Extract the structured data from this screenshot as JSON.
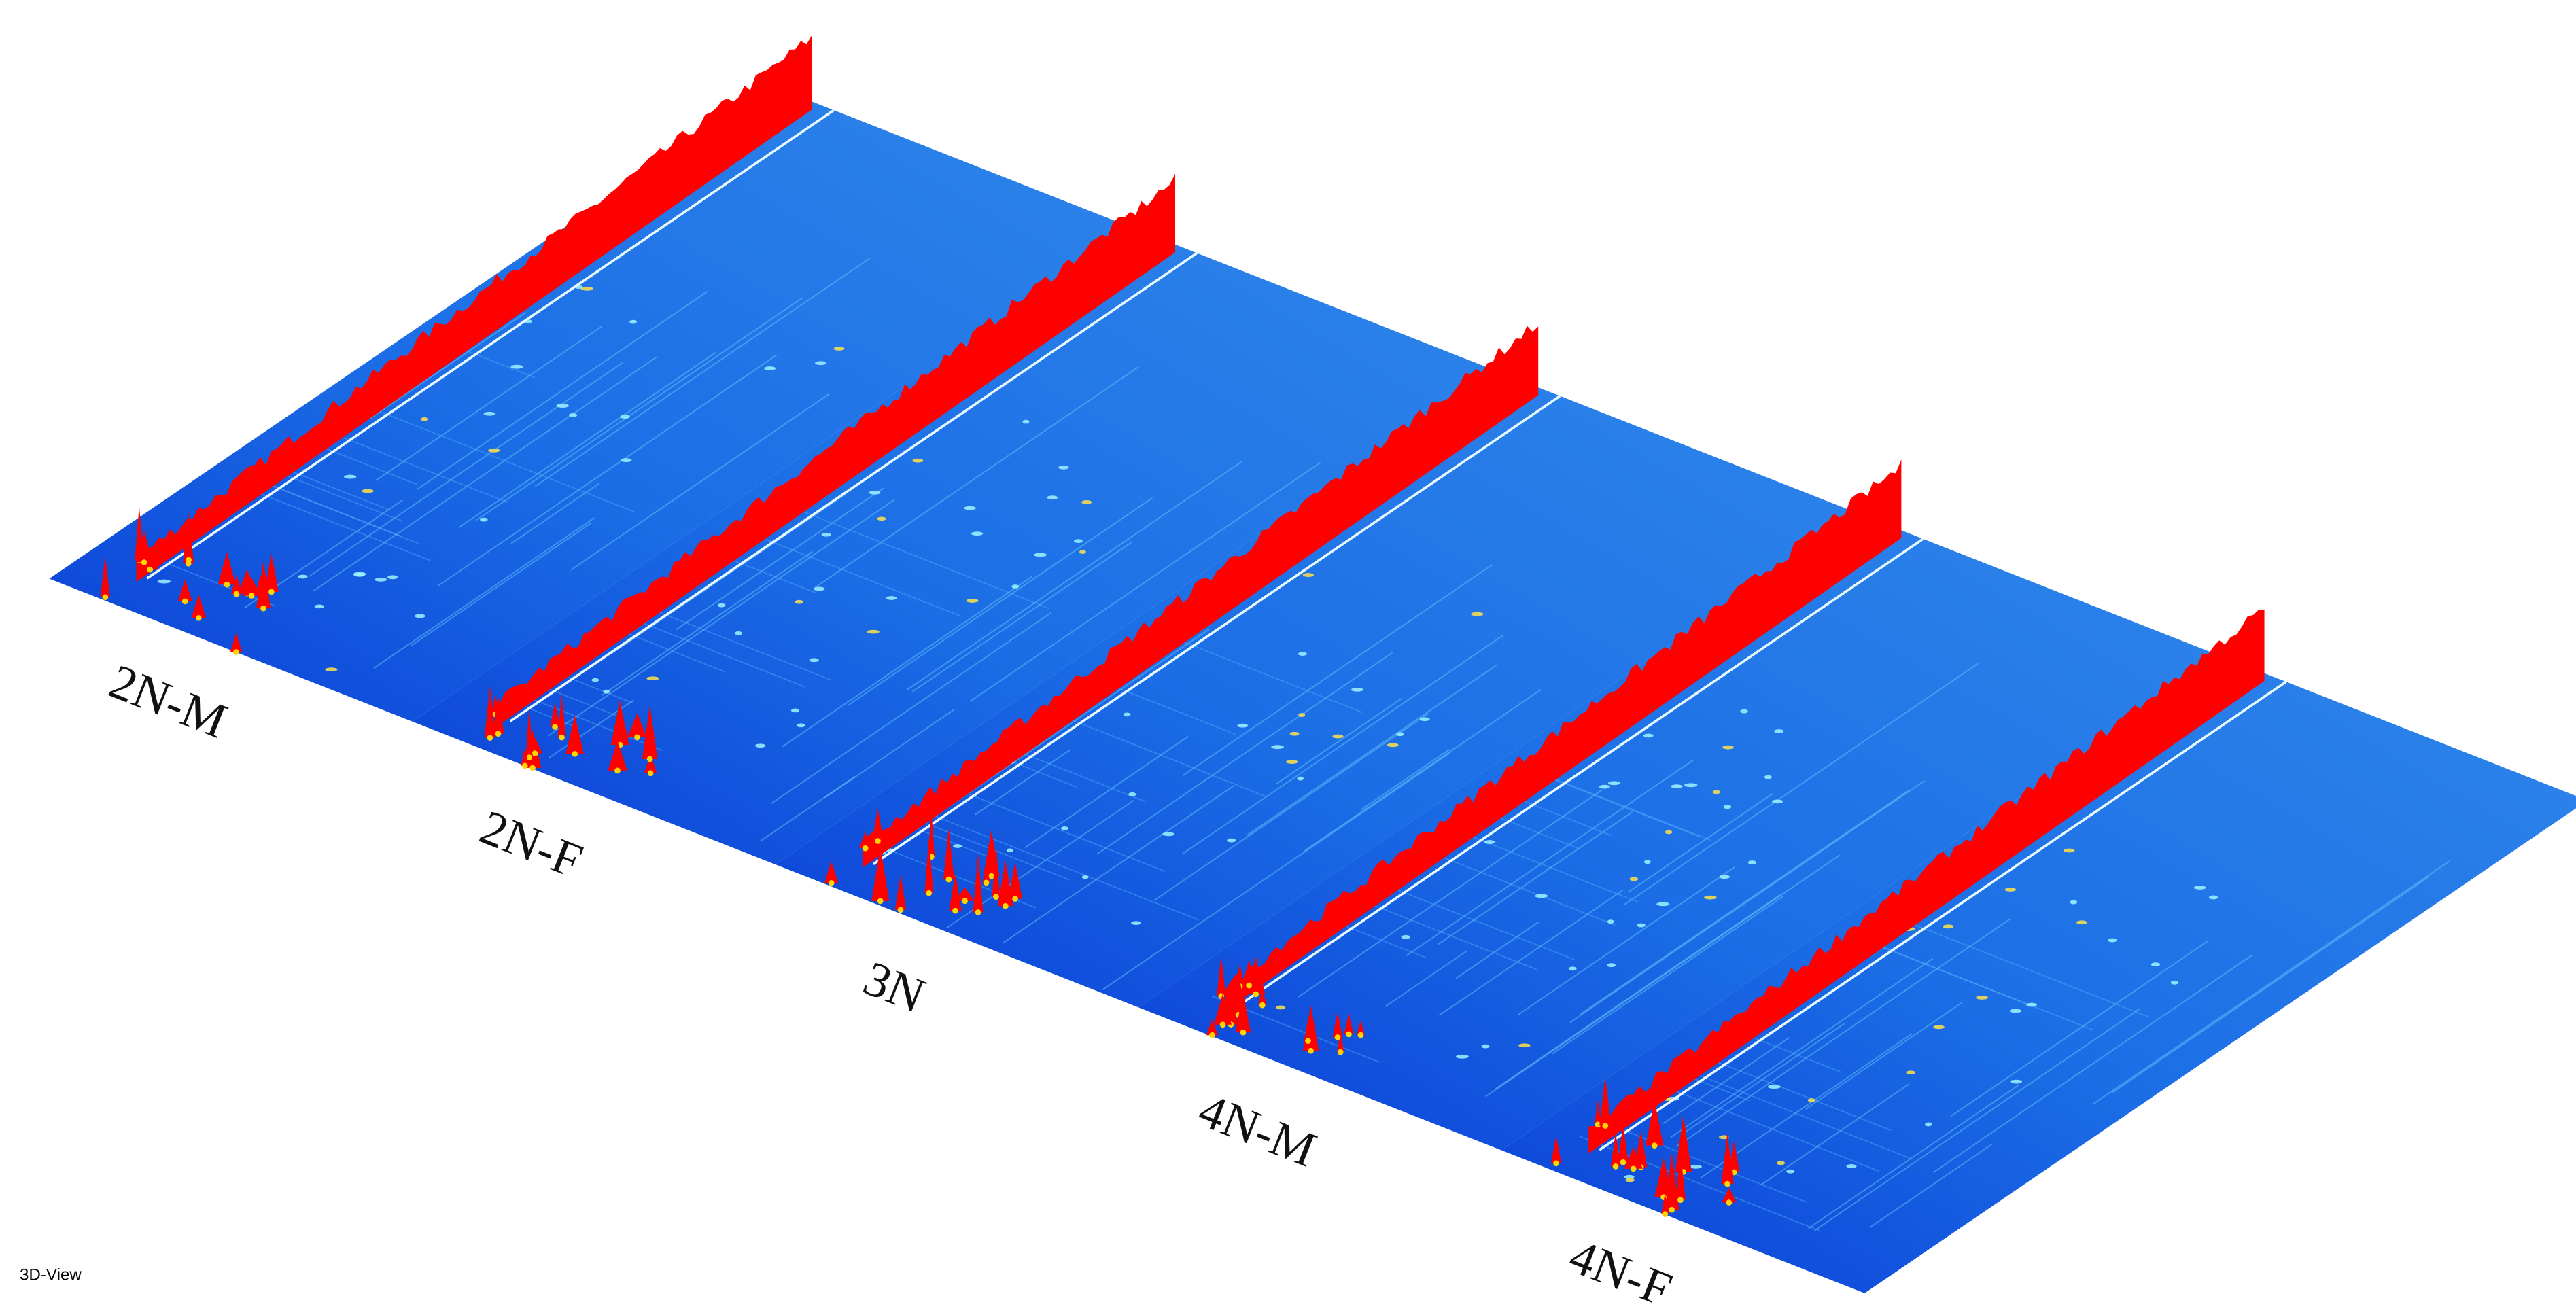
{
  "panels": [
    {
      "label": "2N-M"
    },
    {
      "label": "2N-F"
    },
    {
      "label": "3N"
    },
    {
      "label": "4N-M"
    },
    {
      "label": "4N-F"
    }
  ],
  "footer": {
    "label": "3D-View"
  }
}
